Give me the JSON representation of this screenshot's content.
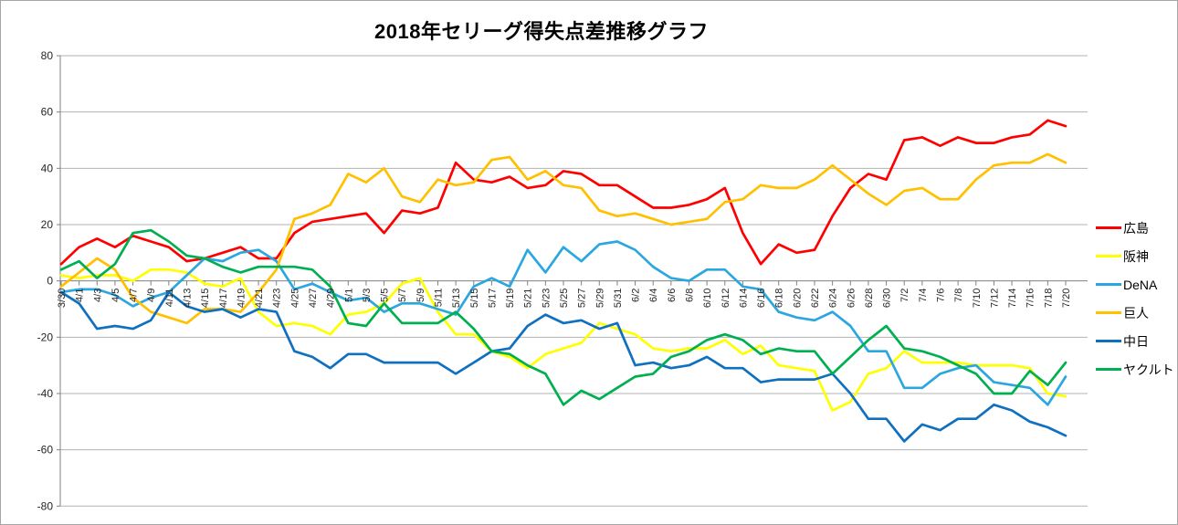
{
  "chart_data": {
    "type": "line",
    "title": "2018年セリーグ得失点差推移グラフ",
    "xlabel": "",
    "ylabel": "",
    "ylim": [
      -80,
      80
    ],
    "y_ticks": [
      80,
      60,
      40,
      20,
      0,
      -20,
      -40,
      -60,
      -80
    ],
    "grid": true,
    "legend_position": "right",
    "x_labels": [
      "3/30",
      "4/1",
      "4/3",
      "4/5",
      "4/7",
      "4/9",
      "4/11",
      "4/13",
      "4/15",
      "4/17",
      "4/19",
      "4/21",
      "4/23",
      "4/25",
      "4/27",
      "4/29",
      "5/1",
      "5/3",
      "5/5",
      "5/7",
      "5/9",
      "5/11",
      "5/13",
      "5/15",
      "5/17",
      "5/19",
      "5/21",
      "5/23",
      "5/25",
      "5/27",
      "5/29",
      "5/31",
      "6/2",
      "6/4",
      "6/6",
      "6/8",
      "6/10",
      "6/12",
      "6/14",
      "6/16",
      "6/18",
      "6/20",
      "6/22",
      "6/24",
      "6/26",
      "6/28",
      "6/30",
      "7/2",
      "7/4",
      "7/6",
      "7/8",
      "7/10",
      "7/12",
      "7/14",
      "7/16",
      "7/18",
      "7/20"
    ],
    "series": [
      {
        "id": "hiroshima",
        "name": "広島",
        "color": "#FF0000",
        "values": [
          6,
          12,
          15,
          12,
          16,
          14,
          12,
          7,
          8,
          10,
          12,
          8,
          8,
          17,
          21,
          22,
          23,
          24,
          17,
          25,
          24,
          26,
          42,
          36,
          35,
          37,
          33,
          34,
          39,
          38,
          34,
          34,
          30,
          26,
          26,
          27,
          29,
          33,
          17,
          6,
          13,
          10,
          11,
          23,
          33,
          38,
          36,
          50,
          51,
          48,
          51,
          49,
          49,
          51,
          52,
          57,
          55
        ]
      },
      {
        "id": "hanshin",
        "name": "阪神",
        "color": "#FFFF00",
        "values": [
          2,
          1,
          2,
          2,
          0,
          4,
          4,
          3,
          -1,
          -2,
          1,
          -11,
          -16,
          -15,
          -16,
          -19,
          -12,
          -11,
          -8,
          -1,
          1,
          -11,
          -19,
          -19,
          -25,
          -27,
          -31,
          -26,
          -24,
          -22,
          -15,
          -17,
          -19,
          -24,
          -25,
          -24,
          -24,
          -21,
          -26,
          -23,
          -30,
          -31,
          -32,
          -46,
          -43,
          -33,
          -31,
          -25,
          -29,
          -29,
          -29,
          -30,
          -30,
          -30,
          -31,
          -40,
          -41
        ]
      },
      {
        "id": "dena",
        "name": "DeNA",
        "color": "#2BA7E0",
        "values": [
          -4,
          -3,
          -3,
          -5,
          -9,
          -6,
          -4,
          2,
          8,
          7,
          10,
          11,
          7,
          -3,
          -1,
          -4,
          -7,
          -6,
          -11,
          -8,
          -8,
          -10,
          -12,
          -2,
          1,
          -2,
          11,
          3,
          12,
          7,
          13,
          14,
          11,
          5,
          1,
          0,
          4,
          4,
          -2,
          -3,
          -11,
          -13,
          -14,
          -11,
          -16,
          -25,
          -25,
          -38,
          -38,
          -33,
          -31,
          -30,
          -36,
          -37,
          -38,
          -44,
          -34
        ]
      },
      {
        "id": "kyojin",
        "name": "巨人",
        "color": "#FFC000",
        "values": [
          -2,
          3,
          8,
          4,
          -6,
          -11,
          -13,
          -15,
          -10,
          -10,
          -11,
          -4,
          4,
          22,
          24,
          27,
          38,
          35,
          40,
          30,
          28,
          36,
          34,
          35,
          43,
          44,
          36,
          39,
          34,
          33,
          25,
          23,
          24,
          22,
          20,
          21,
          22,
          28,
          29,
          34,
          33,
          33,
          36,
          41,
          36,
          31,
          27,
          32,
          33,
          29,
          29,
          36,
          41,
          42,
          42,
          45,
          42
        ]
      },
      {
        "id": "chunichi",
        "name": "中日",
        "color": "#0F70C0",
        "values": [
          -4,
          -8,
          -17,
          -16,
          -17,
          -14,
          -4,
          -9,
          -11,
          -10,
          -13,
          -10,
          -11,
          -25,
          -27,
          -31,
          -26,
          -26,
          -29,
          -29,
          -29,
          -29,
          -33,
          -29,
          -25,
          -24,
          -16,
          -12,
          -15,
          -14,
          -17,
          -15,
          -30,
          -29,
          -31,
          -30,
          -27,
          -31,
          -31,
          -36,
          -35,
          -35,
          -35,
          -33,
          -40,
          -49,
          -49,
          -57,
          -51,
          -53,
          -49,
          -49,
          -44,
          -46,
          -50,
          -52,
          -55
        ]
      },
      {
        "id": "yakult",
        "name": "ヤクルト",
        "color": "#00B050",
        "values": [
          4,
          7,
          1,
          6,
          17,
          18,
          14,
          9,
          8,
          5,
          3,
          5,
          5,
          5,
          4,
          -2,
          -15,
          -16,
          -8,
          -15,
          -15,
          -15,
          -11,
          -17,
          -25,
          -26,
          -30,
          -33,
          -44,
          -39,
          -42,
          -38,
          -34,
          -33,
          -27,
          -25,
          -21,
          -19,
          -21,
          -26,
          -24,
          -25,
          -25,
          -33,
          -27,
          -21,
          -16,
          -24,
          -25,
          -27,
          -30,
          -33,
          -40,
          -40,
          -32,
          -37,
          -29
        ]
      }
    ]
  }
}
